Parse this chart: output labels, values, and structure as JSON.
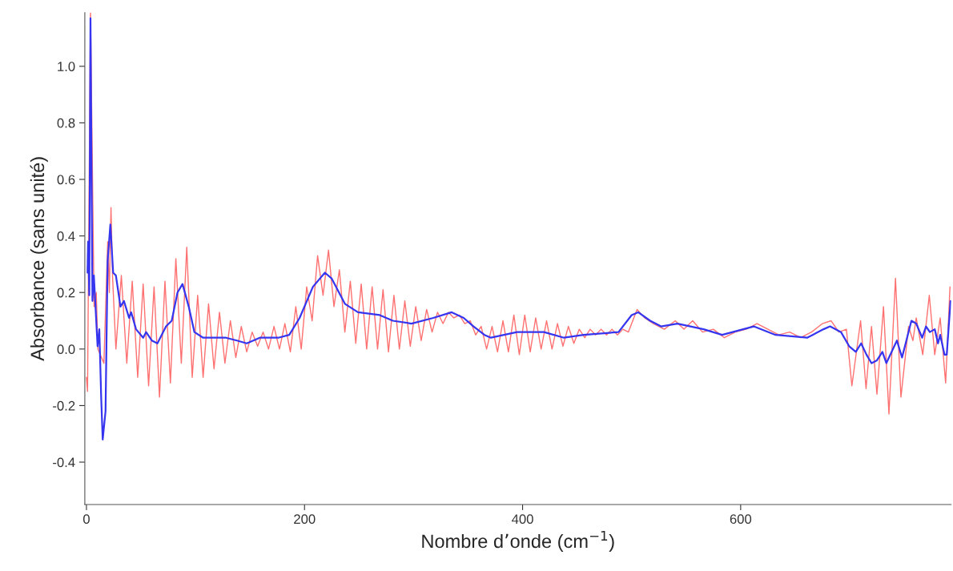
{
  "chart_data": {
    "type": "line",
    "xlabel": "Nombre d’onde (cm$^{−1}$)",
    "ylabel": "Absorbance (sans unité)",
    "xlim": [
      -1.5,
      793
    ],
    "ylim": [
      -0.55,
      1.19
    ],
    "xticks": [
      0,
      200,
      400,
      600
    ],
    "yticks": [
      {
        "value": -0.4,
        "label": "-0.4"
      },
      {
        "value": -0.2,
        "label": "-0.2"
      },
      {
        "value": 0,
        "label": "0.0"
      },
      {
        "value": 0.2,
        "label": "0.2"
      },
      {
        "value": 0.4,
        "label": "0.4"
      },
      {
        "value": 0.6,
        "label": "0.6"
      },
      {
        "value": 0.8,
        "label": "0.8"
      },
      {
        "value": 1.0,
        "label": "1.0"
      }
    ],
    "grid": false,
    "legend": false,
    "series": [
      {
        "color": "#ff7070",
        "x": [
          0,
          1,
          2,
          3.7,
          5,
          7,
          9,
          10.5,
          12,
          14,
          16,
          18,
          19.5,
          21,
          22.5,
          24,
          27,
          32,
          37,
          42,
          47,
          52,
          57,
          62,
          67,
          72,
          77,
          82,
          87,
          92,
          97,
          102,
          107,
          112,
          117,
          122,
          127,
          132,
          137,
          142,
          147,
          152,
          157,
          162,
          167,
          172,
          177,
          182,
          187,
          192,
          197,
          202,
          207,
          212,
          217,
          222,
          227,
          232,
          237,
          242,
          247,
          252,
          257,
          262,
          267,
          272,
          277,
          282,
          287,
          292,
          297,
          302,
          307,
          312,
          317,
          322,
          327,
          332,
          337,
          342,
          347,
          352,
          357,
          362,
          367,
          372,
          377,
          382,
          387,
          392,
          397,
          402,
          407,
          412,
          417,
          422,
          427,
          432,
          437,
          442,
          447,
          452,
          457,
          462,
          467,
          472,
          477,
          482,
          487,
          492,
          497,
          505,
          512,
          520,
          530,
          540,
          548,
          556,
          565,
          575,
          585,
          595,
          605,
          615,
          625,
          635,
          645,
          655,
          665,
          675,
          683,
          690,
          697,
          702,
          710,
          715,
          720,
          725,
          731,
          736,
          742,
          747,
          754,
          758,
          761,
          767,
          773,
          778,
          783,
          788,
          792
        ],
        "values": [
          -0.1,
          -0.15,
          null,
          1.19,
          null,
          0.15,
          0.2,
          0.0,
          null,
          null,
          -0.05,
          null,
          0.38,
          0.2,
          0.5,
          0.25,
          0.0,
          0.26,
          -0.05,
          0.24,
          -0.1,
          0.23,
          -0.13,
          0.22,
          -0.17,
          0.24,
          -0.12,
          0.32,
          -0.05,
          0.36,
          -0.1,
          0.19,
          -0.1,
          0.16,
          -0.07,
          0.13,
          -0.05,
          0.1,
          -0.03,
          0.08,
          -0.01,
          0.06,
          0.01,
          0.06,
          0.0,
          0.08,
          0.0,
          0.09,
          -0.01,
          0.15,
          0.0,
          0.22,
          0.1,
          0.33,
          0.19,
          0.35,
          0.15,
          0.28,
          0.06,
          0.24,
          0.02,
          0.23,
          0.0,
          0.22,
          0.0,
          0.21,
          -0.01,
          0.19,
          0.0,
          0.17,
          0.01,
          0.15,
          0.03,
          0.14,
          0.06,
          0.13,
          0.09,
          0.13,
          0.11,
          0.12,
          0.09,
          0.1,
          0.05,
          0.08,
          0.0,
          0.08,
          -0.01,
          0.1,
          -0.01,
          0.12,
          -0.02,
          0.12,
          -0.01,
          0.11,
          0.0,
          0.1,
          0.0,
          0.09,
          0.01,
          0.08,
          0.02,
          0.07,
          0.04,
          0.07,
          0.05,
          0.07,
          0.05,
          0.07,
          0.05,
          0.07,
          0.06,
          0.14,
          0.11,
          0.09,
          0.07,
          0.1,
          0.07,
          0.1,
          0.06,
          0.07,
          0.04,
          0.06,
          0.07,
          0.09,
          0.07,
          0.05,
          0.06,
          0.04,
          0.06,
          0.09,
          0.1,
          0.06,
          0.07,
          -0.13,
          0.1,
          -0.14,
          0.08,
          -0.16,
          0.15,
          -0.23,
          0.25,
          -0.17,
          0.08,
          0.03,
          0.11,
          -0.02,
          0.19,
          -0.02,
          0.11,
          -0.12,
          0.22
        ]
      },
      {
        "color": "#3535f0",
        "x": [
          1,
          1.5,
          2.6,
          3.7,
          5.5,
          6.8,
          10.2,
          11.8,
          13.5,
          14.9,
          17.5,
          19.4,
          21.9,
          24.5,
          27,
          31.2,
          34.4,
          39.1,
          41,
          45.5,
          52,
          54.7,
          59.9,
          65.1,
          73,
          78.2,
          83.5,
          88.1,
          93.8,
          99,
          107,
          117,
          128,
          138,
          147,
          159,
          176,
          186,
          195.5,
          207.7,
          218.7,
          224.8,
          237,
          249,
          269,
          281,
          298,
          318,
          335,
          346,
          355,
          365,
          371,
          395,
          419.5,
          438,
          456,
          488,
          500,
          506,
          517,
          527,
          542,
          554,
          566,
          583,
          612,
          632,
          661,
          676,
          682,
          692,
          699.5,
          705.6,
          710.5,
          715.4,
          720,
          725,
          730,
          733.6,
          743.3,
          748,
          756.6,
          761,
          766.5,
          770,
          773.5,
          778,
          781,
          783,
          787,
          789,
          792.5
        ],
        "values": [
          0.27,
          0.38,
          0.19,
          1.17,
          0.17,
          0.26,
          0.01,
          0.07,
          -0.17,
          -0.32,
          -0.22,
          0.31,
          0.44,
          0.27,
          0.26,
          0.15,
          0.17,
          0.11,
          0.13,
          0.07,
          0.04,
          0.06,
          0.03,
          0.02,
          0.08,
          0.1,
          0.2,
          0.23,
          0.15,
          0.06,
          0.04,
          0.04,
          0.04,
          0.03,
          0.02,
          0.04,
          0.04,
          0.05,
          0.11,
          0.22,
          0.27,
          0.25,
          0.16,
          0.13,
          0.12,
          0.1,
          0.09,
          0.11,
          0.13,
          0.11,
          0.08,
          0.05,
          0.04,
          0.06,
          0.06,
          0.04,
          0.05,
          0.06,
          0.12,
          0.13,
          0.1,
          0.08,
          0.09,
          0.08,
          0.07,
          0.05,
          0.08,
          0.05,
          0.04,
          0.07,
          0.08,
          0.06,
          0.01,
          -0.01,
          0.02,
          -0.02,
          -0.05,
          -0.04,
          -0.01,
          -0.05,
          0.03,
          -0.03,
          0.1,
          0.09,
          0.04,
          0.08,
          0.06,
          0.07,
          0.02,
          0.05,
          -0.02,
          -0.02,
          0.17
        ]
      }
    ]
  }
}
